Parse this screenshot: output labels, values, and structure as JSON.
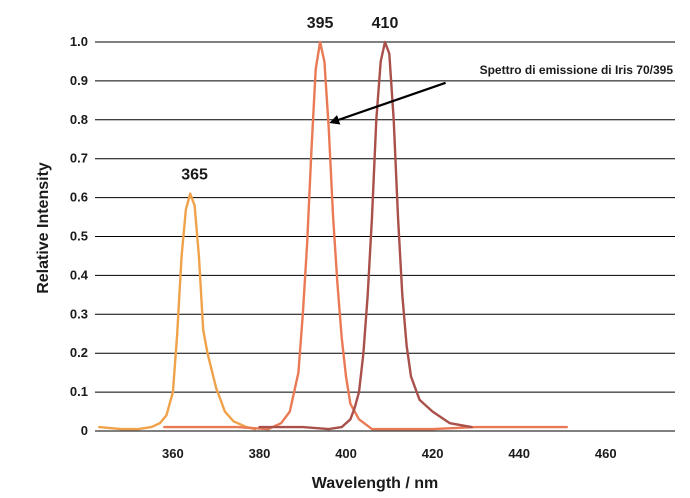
{
  "chart_data": {
    "type": "line",
    "title": "",
    "xlabel": "Wavelength / nm",
    "ylabel": "Relative Intensity",
    "xlim": [
      342,
      476
    ],
    "ylim": [
      0,
      1.0
    ],
    "x_ticks": [
      {
        "value": 360,
        "label": "360"
      },
      {
        "value": 380,
        "label": "380"
      },
      {
        "value": 400,
        "label": "400"
      },
      {
        "value": 420,
        "label": "420"
      },
      {
        "value": 440,
        "label": "440"
      },
      {
        "value": 460,
        "label": "460"
      }
    ],
    "y_ticks": [
      {
        "value": 0,
        "label": "0"
      },
      {
        "value": 0.1,
        "label": "0.1"
      },
      {
        "value": 0.2,
        "label": "0.2"
      },
      {
        "value": 0.3,
        "label": "0.3"
      },
      {
        "value": 0.4,
        "label": "0.4"
      },
      {
        "value": 0.5,
        "label": "0.5"
      },
      {
        "value": 0.6,
        "label": "0.6"
      },
      {
        "value": 0.7,
        "label": "0.7"
      },
      {
        "value": 0.8,
        "label": "0.8"
      },
      {
        "value": 0.9,
        "label": "0.9"
      },
      {
        "value": 1.0,
        "label": "1.0"
      }
    ],
    "grid": "horizontal",
    "series": [
      {
        "color": "#f0a24a",
        "x": [
          343,
          348,
          352,
          355,
          357,
          358.5,
          360,
          361,
          362,
          363,
          364,
          365,
          366,
          367,
          368,
          370,
          372,
          374,
          377,
          379
        ],
        "y": [
          0.01,
          0.005,
          0.005,
          0.01,
          0.02,
          0.04,
          0.1,
          0.25,
          0.45,
          0.57,
          0.61,
          0.58,
          0.45,
          0.26,
          0.2,
          0.11,
          0.05,
          0.025,
          0.01,
          0.005
        ]
      },
      {
        "color": "#e97a55",
        "x": [
          358,
          365,
          375,
          382,
          385,
          387,
          389,
          390,
          391,
          392,
          393,
          394,
          395,
          396,
          397,
          398,
          399,
          400,
          401,
          403,
          406,
          410,
          420,
          430,
          440,
          451
        ],
        "y": [
          0.01,
          0.01,
          0.01,
          0.005,
          0.02,
          0.05,
          0.15,
          0.3,
          0.48,
          0.72,
          0.93,
          1.0,
          0.95,
          0.78,
          0.55,
          0.38,
          0.24,
          0.14,
          0.07,
          0.03,
          0.005,
          0.005,
          0.005,
          0.01,
          0.01,
          0.01
        ]
      },
      {
        "color": "#a9504a",
        "x": [
          380,
          390,
          396,
          399,
          401,
          402,
          403,
          404,
          405,
          406,
          407,
          408,
          409,
          410,
          411,
          412,
          413,
          414,
          415,
          417,
          420,
          424,
          429
        ],
        "y": [
          0.01,
          0.01,
          0.005,
          0.01,
          0.03,
          0.06,
          0.1,
          0.2,
          0.35,
          0.55,
          0.8,
          0.95,
          1.0,
          0.97,
          0.8,
          0.55,
          0.35,
          0.22,
          0.14,
          0.08,
          0.05,
          0.02,
          0.01
        ]
      }
    ],
    "peak_labels": [
      {
        "text": "365",
        "x": 365,
        "y": 0.61
      },
      {
        "text": "395",
        "x": 394,
        "y": 1.0
      },
      {
        "text": "410",
        "x": 409,
        "y": 1.0
      }
    ],
    "annotations": [
      {
        "text": "Spettro di emissione di Iris 70/395",
        "arrow_from": [
          423,
          0.895
        ],
        "arrow_to": [
          397,
          0.795
        ]
      }
    ]
  }
}
